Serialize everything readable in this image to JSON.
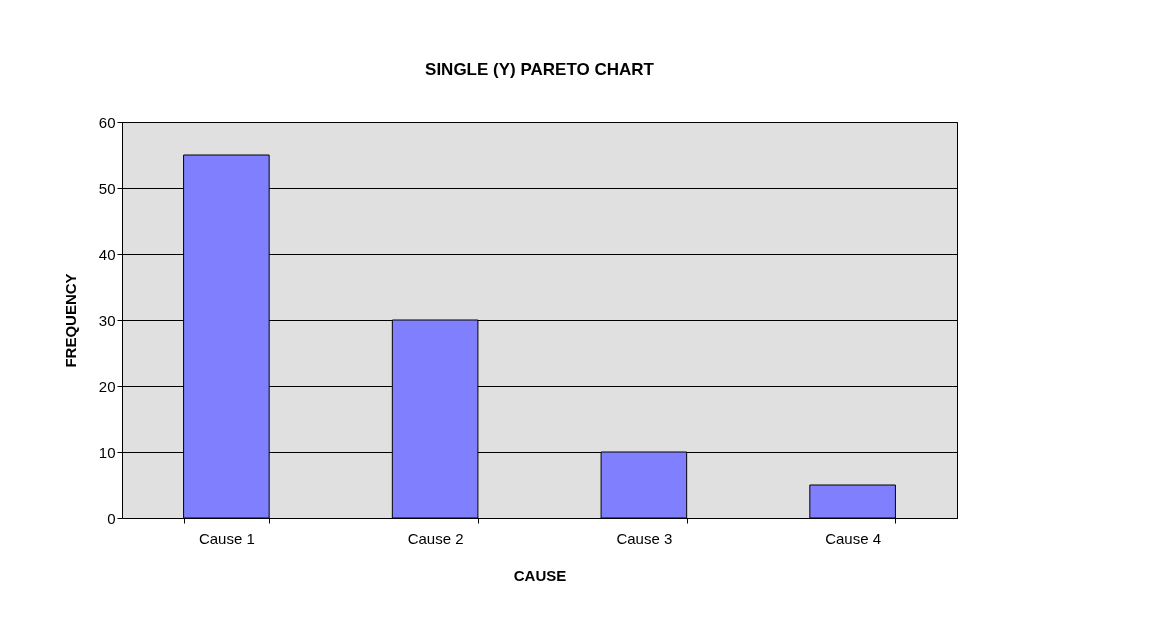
{
  "chart_data": {
    "type": "bar",
    "title": "SINGLE (Y) PARETO CHART",
    "xlabel": "CAUSE",
    "ylabel": "FREQUENCY",
    "categories": [
      "Cause 1",
      "Cause 2",
      "Cause 3",
      "Cause 4"
    ],
    "values": [
      55,
      30,
      10,
      5
    ],
    "color": "#8080ff",
    "ylim": [
      0,
      60
    ],
    "yticks": [
      0,
      10,
      20,
      30,
      40,
      50,
      60
    ],
    "grid": "y"
  }
}
